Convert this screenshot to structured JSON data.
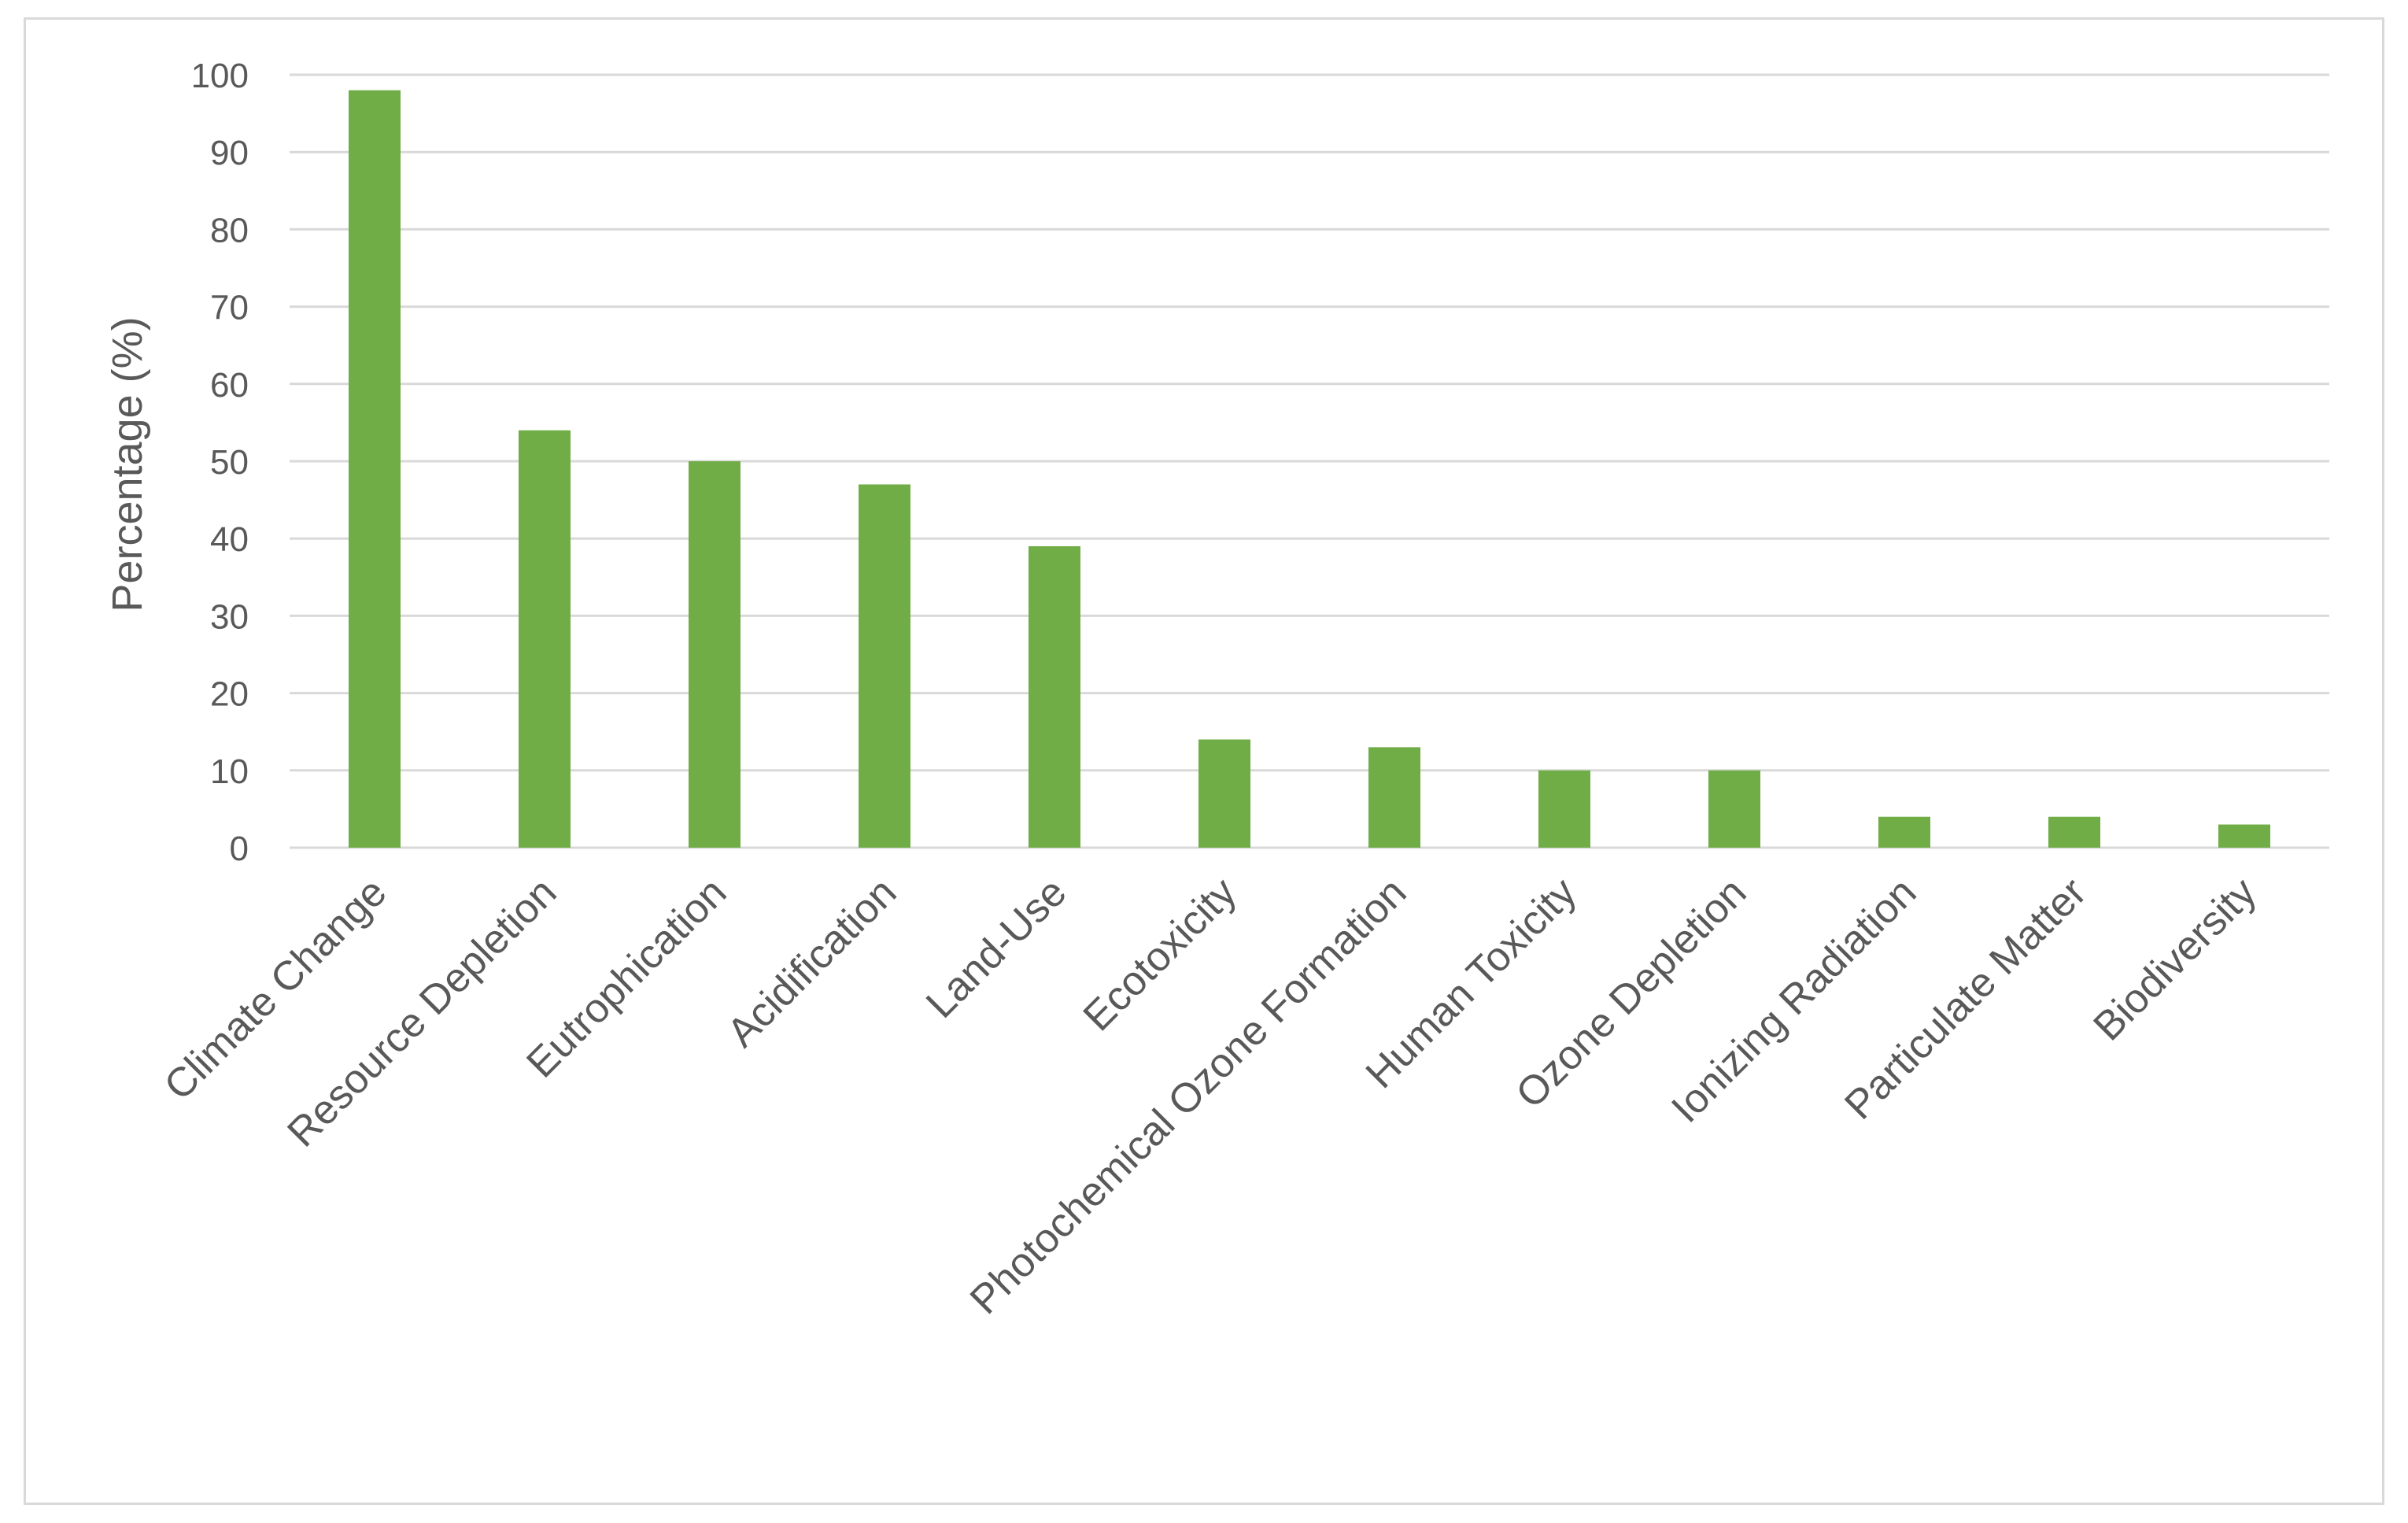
{
  "chart_data": {
    "type": "bar",
    "categories": [
      "Climate Change",
      "Resource Depletion",
      "Eutrophication",
      "Acidification",
      "Land-Use",
      "Ecotoxicity",
      "Photochemical Ozone Formation",
      "Human Toxicity",
      "Ozone Depletion",
      "Ionizing Radiation",
      "Particulate Matter",
      "Biodiversity"
    ],
    "values": [
      98,
      54,
      50,
      47,
      39,
      14,
      13,
      10,
      10,
      4,
      4,
      3
    ],
    "title": "",
    "xlabel": "",
    "ylabel": "Percentage (%)",
    "ylim": [
      0,
      100
    ],
    "yticks": [
      "0",
      "10",
      "20",
      "30",
      "40",
      "50",
      "60",
      "70",
      "80",
      "90",
      "100"
    ],
    "grid": true,
    "legend": "none",
    "bar_color": "#70ad47"
  }
}
